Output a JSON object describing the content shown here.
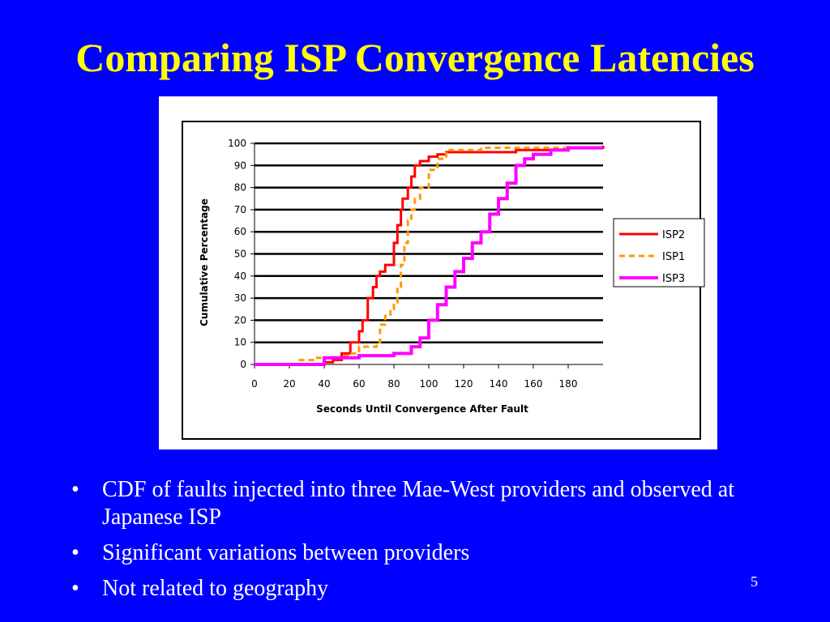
{
  "slide": {
    "title": "Comparing ISP Convergence Latencies",
    "page_number": "5",
    "bullet_marker": "•",
    "bullets": [
      "CDF of faults injected into three Mae-West providers and observed at Japanese ISP",
      "Significant variations between providers",
      "Not related to geography"
    ],
    "colors": {
      "background": "#0000ff",
      "title": "#ffff00",
      "text": "#ffffff"
    }
  },
  "chart_data": {
    "type": "line",
    "title": "",
    "xlabel": "Seconds Until Convergence After Fault",
    "ylabel": "Cumulative Percentage",
    "xlim": [
      0,
      200
    ],
    "ylim": [
      0,
      100
    ],
    "xticks": [
      0,
      20,
      40,
      60,
      80,
      100,
      120,
      140,
      160,
      180
    ],
    "yticks": [
      0,
      10,
      20,
      30,
      40,
      50,
      60,
      70,
      80,
      90,
      100
    ],
    "grid": "horizontal",
    "legend_position": "right",
    "series": [
      {
        "name": "ISP2",
        "color": "#ff0000",
        "style": "solid",
        "x": [
          0,
          30,
          40,
          45,
          50,
          55,
          60,
          62,
          65,
          68,
          70,
          72,
          75,
          78,
          80,
          82,
          84,
          85,
          88,
          90,
          92,
          95,
          100,
          105,
          110,
          120,
          150,
          180,
          200
        ],
        "y": [
          0,
          0,
          1,
          2,
          5,
          10,
          15,
          20,
          30,
          35,
          40,
          42,
          45,
          45,
          55,
          63,
          70,
          75,
          80,
          85,
          90,
          92,
          94,
          95,
          96,
          96,
          97,
          98,
          99
        ]
      },
      {
        "name": "ISP1",
        "color": "#ff9900",
        "style": "dashed",
        "x": [
          0,
          25,
          35,
          50,
          55,
          60,
          65,
          70,
          72,
          75,
          78,
          80,
          82,
          84,
          86,
          88,
          90,
          92,
          95,
          100,
          105,
          110,
          130,
          200
        ],
        "y": [
          0,
          2,
          3,
          4,
          5,
          8,
          8,
          10,
          18,
          22,
          25,
          28,
          35,
          45,
          55,
          65,
          70,
          75,
          80,
          88,
          93,
          97,
          98,
          98
        ]
      },
      {
        "name": "ISP3",
        "color": "#ff00ff",
        "style": "solid",
        "x": [
          0,
          30,
          40,
          60,
          70,
          80,
          85,
          90,
          95,
          100,
          105,
          110,
          115,
          120,
          125,
          130,
          135,
          140,
          145,
          150,
          155,
          160,
          170,
          180,
          200
        ],
        "y": [
          0,
          0,
          3,
          4,
          4,
          5,
          5,
          8,
          12,
          20,
          27,
          35,
          42,
          48,
          55,
          60,
          68,
          75,
          82,
          90,
          93,
          95,
          97,
          98,
          98
        ]
      }
    ]
  }
}
